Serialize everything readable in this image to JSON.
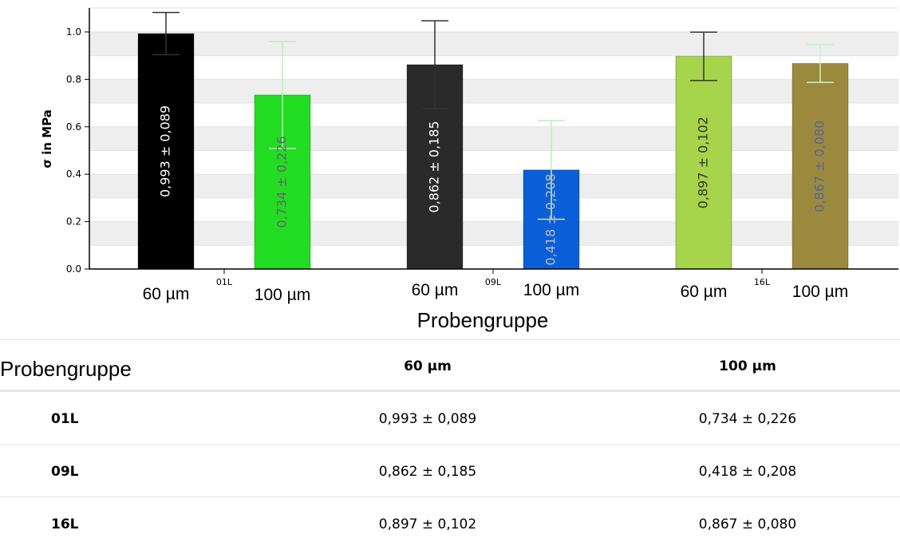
{
  "chart_data": {
    "type": "bar",
    "ylabel": "σ in MPa",
    "xlabel": "Probengruppe",
    "ylim": [
      0,
      1.1
    ],
    "yticks": [
      "0.0",
      "0.2",
      "0.4",
      "0.6",
      "0.8",
      "1.0"
    ],
    "grid": "alternating horizontal bands",
    "groups": [
      {
        "name": "01L",
        "bars": [
          {
            "category": "60 µm",
            "value": 0.993,
            "error": 0.089,
            "label": "0,993 ± 0,089",
            "color": "#000000",
            "label_color": "#ffffff",
            "err_color": "#333333"
          },
          {
            "category": "100 µm",
            "value": 0.734,
            "error": 0.226,
            "label": "0,734 ± 0,226",
            "color": "#22dd22",
            "label_color": "#666666",
            "err_color": "#b8f0b8"
          }
        ]
      },
      {
        "name": "09L",
        "bars": [
          {
            "category": "60 µm",
            "value": 0.862,
            "error": 0.185,
            "label": "0,862 ± 0,185",
            "color": "#2a2a2a",
            "label_color": "#ffffff",
            "err_color": "#333333"
          },
          {
            "category": "100 µm",
            "value": 0.418,
            "error": 0.208,
            "label": "0,418 ± 0,208",
            "color": "#0a5fd8",
            "label_color": "#bbbbbb",
            "err_color": "#b8f0b8"
          }
        ]
      },
      {
        "name": "16L",
        "bars": [
          {
            "category": "60 µm",
            "value": 0.897,
            "error": 0.102,
            "label": "0,897 ± 0,102",
            "color": "#a6d44a",
            "label_color": "#333333",
            "err_color": "#333333"
          },
          {
            "category": "100 µm",
            "value": 0.867,
            "error": 0.08,
            "label": "0,867 ± 0,080",
            "color": "#9b8a3e",
            "label_color": "#556699",
            "err_color": "#c8f0c8"
          }
        ]
      }
    ]
  },
  "table": {
    "header_label": "Probengruppe",
    "columns": [
      "60 µm",
      "100 µm"
    ],
    "rows": [
      {
        "group": "01L",
        "values": [
          "0,993 ± 0,089",
          "0,734 ± 0,226"
        ]
      },
      {
        "group": "09L",
        "values": [
          "0,862 ± 0,185",
          "0,418 ± 0,208"
        ]
      },
      {
        "group": "16L",
        "values": [
          "0,897 ± 0,102",
          "0,867 ± 0,080"
        ]
      }
    ]
  }
}
